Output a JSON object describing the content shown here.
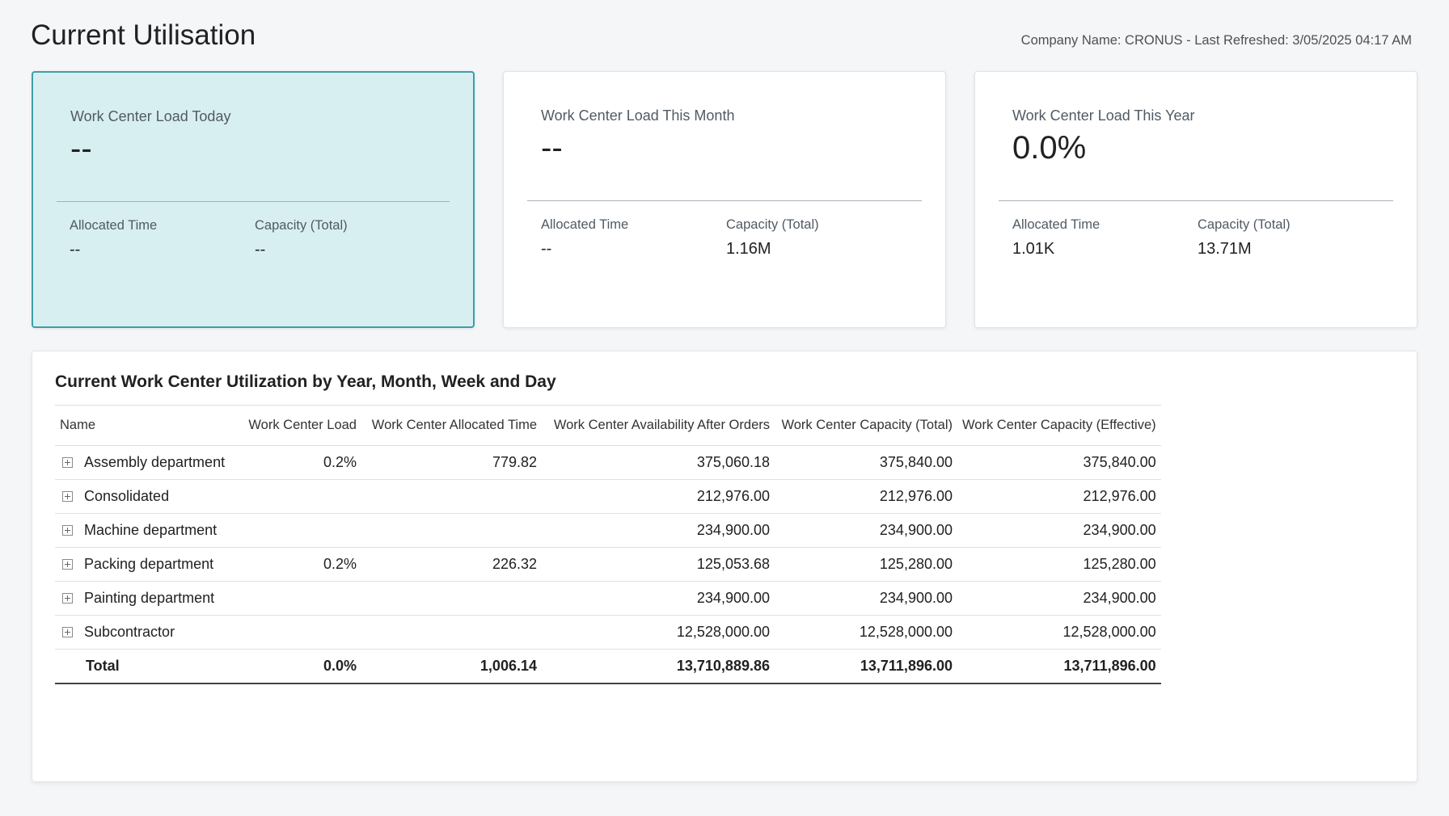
{
  "page": {
    "title": "Current Utilisation",
    "meta": "Company Name: CRONUS - Last Refreshed: 3/05/2025 04:17 AM"
  },
  "cards": [
    {
      "title": "Work Center Load Today",
      "value": "--",
      "sub1_label": "Allocated Time",
      "sub1_value": "--",
      "sub2_label": "Capacity (Total)",
      "sub2_value": "--",
      "selected": true
    },
    {
      "title": "Work Center Load This Month",
      "value": "--",
      "sub1_label": "Allocated Time",
      "sub1_value": "--",
      "sub2_label": "Capacity (Total)",
      "sub2_value": "1.16M",
      "selected": false
    },
    {
      "title": "Work Center Load This Year",
      "value": "0.0%",
      "sub1_label": "Allocated Time",
      "sub1_value": "1.01K",
      "sub2_label": "Capacity (Total)",
      "sub2_value": "13.71M",
      "selected": false
    }
  ],
  "colors": {
    "selected_card_bg": "#d8eff2",
    "selected_card_border": "#3e9ea8"
  },
  "table": {
    "title": "Current Work Center Utilization by Year, Month, Week and Day",
    "columns": [
      "Name",
      "Work Center Load",
      "Work Center Allocated Time",
      "Work Center Availability After Orders",
      "Work Center Capacity (Total)",
      "Work Center Capacity (Effective)"
    ],
    "rows": [
      [
        "Assembly department",
        "0.2%",
        "779.82",
        "375,060.18",
        "375,840.00",
        "375,840.00"
      ],
      [
        "Consolidated",
        "",
        "",
        "212,976.00",
        "212,976.00",
        "212,976.00"
      ],
      [
        "Machine department",
        "",
        "",
        "234,900.00",
        "234,900.00",
        "234,900.00"
      ],
      [
        "Packing department",
        "0.2%",
        "226.32",
        "125,053.68",
        "125,280.00",
        "125,280.00"
      ],
      [
        "Painting department",
        "",
        "",
        "234,900.00",
        "234,900.00",
        "234,900.00"
      ],
      [
        "Subcontractor",
        "",
        "",
        "12,528,000.00",
        "12,528,000.00",
        "12,528,000.00"
      ]
    ],
    "total": [
      "Total",
      "0.0%",
      "1,006.14",
      "13,710,889.86",
      "13,711,896.00",
      "13,711,896.00"
    ]
  }
}
